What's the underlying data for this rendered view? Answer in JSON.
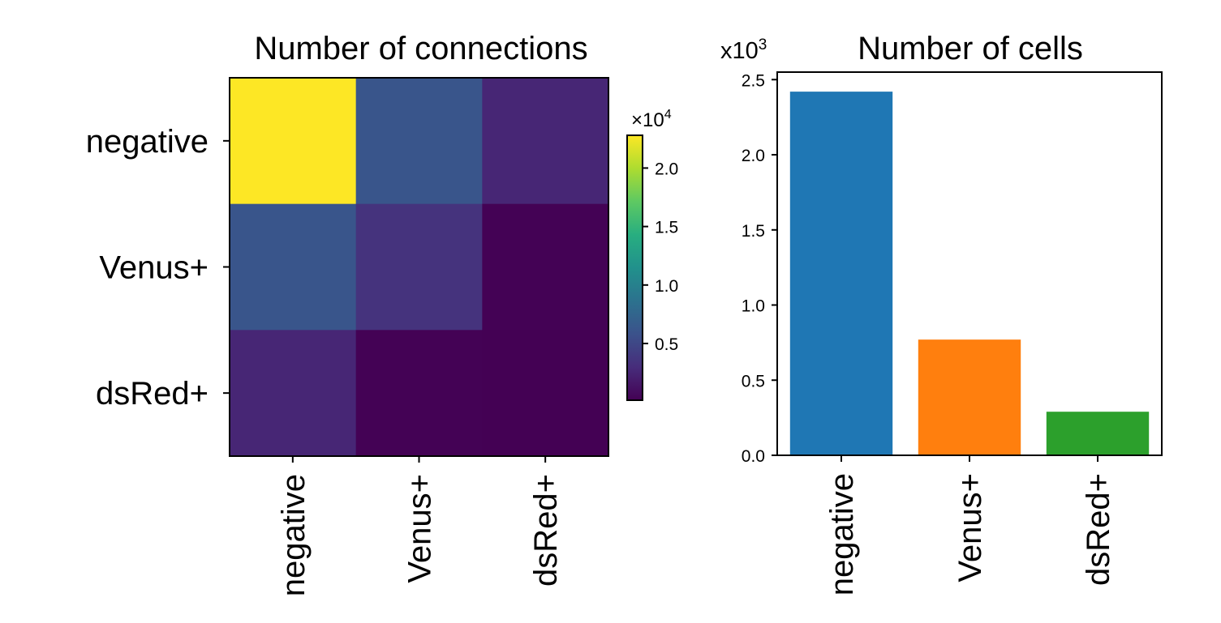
{
  "chart_data": [
    {
      "type": "heatmap",
      "title": "Number of connections",
      "rows": [
        "negative",
        "Venus+",
        "dsRed+"
      ],
      "columns": [
        "negative",
        "Venus+",
        "dsRed+"
      ],
      "values": [
        [
          22800,
          6200,
          2600
        ],
        [
          6200,
          3500,
          200
        ],
        [
          2600,
          200,
          150
        ]
      ],
      "colormap": "viridis",
      "colorbar": {
        "multiplier_base": "×10",
        "multiplier_exp": "4",
        "range": [
          150,
          22800
        ],
        "ticks": [
          0.5,
          1.0,
          1.5,
          2.0
        ],
        "tick_labels": [
          "0.5",
          "1.0",
          "1.5",
          "2.0"
        ]
      }
    },
    {
      "type": "bar",
      "title": "Number of cells",
      "categories": [
        "negative",
        "Venus+",
        "dsRed+"
      ],
      "values": [
        2.42,
        0.77,
        0.29
      ],
      "colors": [
        "#1f77b4",
        "#ff7f0e",
        "#2ca02c"
      ],
      "multiplier_base": "x10",
      "multiplier_exp": "3",
      "ylim": [
        0,
        2.55
      ],
      "yticks": [
        0.0,
        0.5,
        1.0,
        1.5,
        2.0,
        2.5
      ],
      "ytick_labels": [
        "0.0",
        "0.5",
        "1.0",
        "1.5",
        "2.0",
        "2.5"
      ],
      "grid": false
    }
  ]
}
